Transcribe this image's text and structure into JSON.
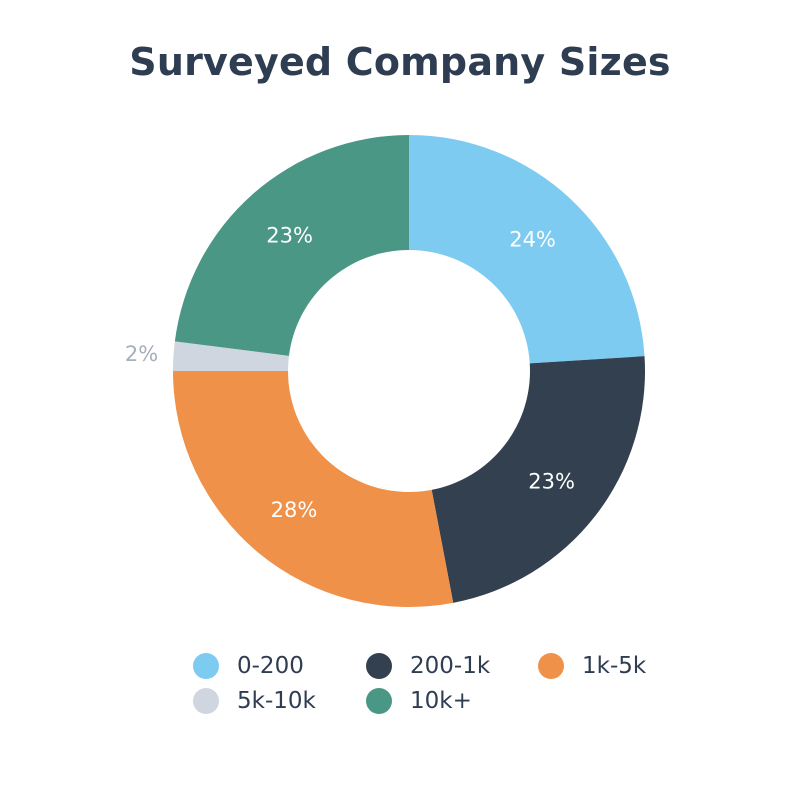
{
  "chart_data": {
    "type": "pie",
    "title": "Surveyed Company Sizes",
    "donut": true,
    "legend_position": "bottom",
    "slices": [
      {
        "label": "0-200",
        "value": 24,
        "value_label": "24%",
        "color": "#7ecbf1"
      },
      {
        "label": "200-1k",
        "value": 23,
        "value_label": "23%",
        "color": "#33404f"
      },
      {
        "label": "1k-5k",
        "value": 28,
        "value_label": "28%",
        "color": "#f0914a"
      },
      {
        "label": "5k-10k",
        "value": 2,
        "value_label": "2%",
        "color": "#cfd6e0"
      },
      {
        "label": "10k+",
        "value": 23,
        "value_label": "23%",
        "color": "#4a9786"
      }
    ]
  }
}
